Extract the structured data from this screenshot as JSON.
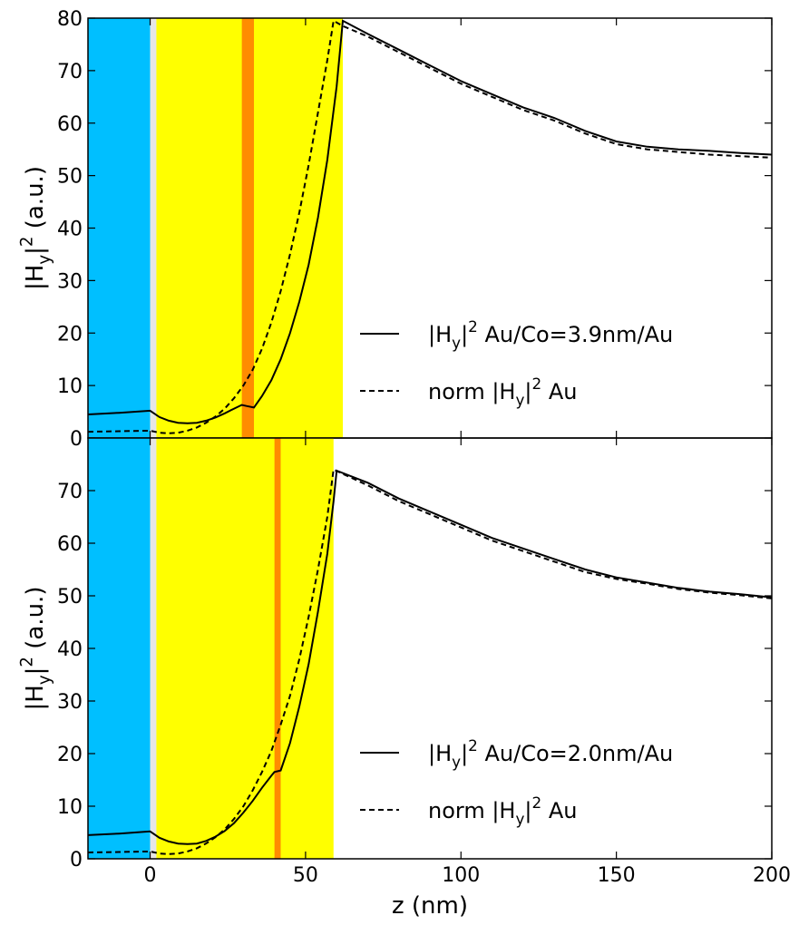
{
  "colors": {
    "substrate": "#00bfff",
    "spacer": "#e6e6e6",
    "gold": "#ffff00",
    "cobalt": "#ff8c00",
    "line": "#000000"
  },
  "xlabel": "z (nm)",
  "chart_data": [
    {
      "type": "line",
      "ylabel": "|H_y|^2 (a.u.)",
      "xlim": [
        -20,
        200
      ],
      "ylim": [
        0,
        80
      ],
      "xticks": [
        0,
        50,
        100,
        150,
        200
      ],
      "yticks": [
        0,
        10,
        20,
        30,
        40,
        50,
        60,
        70,
        80
      ],
      "ytick_labels": [
        "0",
        "10",
        "20",
        "30",
        "40",
        "50",
        "60",
        "70",
        "80"
      ],
      "grid": false,
      "legend_position": "lower-right",
      "regions": [
        {
          "material": "substrate",
          "x0": -20,
          "x1": 0
        },
        {
          "material": "spacer",
          "x0": 0,
          "x1": 2
        },
        {
          "material": "gold",
          "x0": 2,
          "x1": 62
        },
        {
          "material": "cobalt",
          "x0": 29.5,
          "x1": 33.4
        }
      ],
      "series": [
        {
          "name": "Au/Co=3.9nm/Au",
          "style": "solid",
          "x": [
            -20,
            -10,
            0,
            3,
            6,
            9,
            12,
            15,
            18,
            21,
            24,
            27,
            29.5,
            31,
            33.4,
            36,
            39,
            42,
            45,
            48,
            51,
            54,
            57,
            60,
            62,
            70,
            80,
            90,
            100,
            110,
            120,
            130,
            140,
            150,
            160,
            170,
            180,
            190,
            200
          ],
          "y": [
            4.5,
            4.8,
            5.2,
            4.0,
            3.3,
            2.9,
            2.8,
            2.9,
            3.3,
            3.9,
            4.7,
            5.6,
            6.3,
            6.1,
            5.8,
            8.0,
            11.0,
            15.0,
            20.0,
            26.0,
            33.0,
            42.0,
            53.0,
            67.0,
            79.5,
            77.0,
            74.0,
            71.0,
            68.0,
            65.5,
            63.0,
            61.0,
            58.5,
            56.5,
            55.5,
            55.0,
            54.7,
            54.3,
            54.0
          ]
        },
        {
          "name": "Au",
          "style": "dashed",
          "x": [
            -20,
            -10,
            0,
            3,
            6,
            9,
            12,
            15,
            18,
            21,
            24,
            27,
            30,
            33,
            36,
            39,
            42,
            45,
            48,
            51,
            54,
            57,
            59,
            62,
            70,
            80,
            90,
            100,
            110,
            120,
            130,
            140,
            150,
            160,
            170,
            180,
            190,
            200
          ],
          "y": [
            1.2,
            1.3,
            1.4,
            1.0,
            0.9,
            1.0,
            1.4,
            2.0,
            2.9,
            4.1,
            5.6,
            7.6,
            10.0,
            13.0,
            17.0,
            22.0,
            28.0,
            35.0,
            43.0,
            52.0,
            62.0,
            72.0,
            79.5,
            78.5,
            76.5,
            73.5,
            70.5,
            67.5,
            65.0,
            62.5,
            60.5,
            58.0,
            56.0,
            55.0,
            54.5,
            54.0,
            53.7,
            53.4
          ]
        }
      ]
    },
    {
      "type": "line",
      "ylabel": "|H_y|^2 (a.u.)",
      "xlim": [
        -20,
        200
      ],
      "ylim": [
        0,
        80
      ],
      "xticks": [
        0,
        50,
        100,
        150,
        200
      ],
      "xtick_labels": [
        "0",
        "50",
        "100",
        "150",
        "200"
      ],
      "yticks": [
        0,
        10,
        20,
        30,
        40,
        50,
        60,
        70
      ],
      "ytick_labels": [
        "0",
        "10",
        "20",
        "30",
        "40",
        "50",
        "60",
        "70"
      ],
      "grid": false,
      "legend_position": "lower-right",
      "regions": [
        {
          "material": "substrate",
          "x0": -20,
          "x1": 0
        },
        {
          "material": "spacer",
          "x0": 0,
          "x1": 2
        },
        {
          "material": "gold",
          "x0": 2,
          "x1": 59
        },
        {
          "material": "cobalt",
          "x0": 40,
          "x1": 42
        }
      ],
      "series": [
        {
          "name": "Au/Co=2.0nm/Au",
          "style": "solid",
          "x": [
            -20,
            -10,
            0,
            3,
            6,
            9,
            12,
            15,
            18,
            21,
            24,
            27,
            30,
            33,
            36,
            39,
            40,
            42,
            45,
            48,
            51,
            54,
            57,
            59,
            60,
            70,
            80,
            90,
            100,
            110,
            120,
            130,
            140,
            150,
            160,
            170,
            180,
            190,
            200
          ],
          "y": [
            4.5,
            4.8,
            5.2,
            4.0,
            3.3,
            2.9,
            2.8,
            2.9,
            3.4,
            4.2,
            5.3,
            6.8,
            8.8,
            11.0,
            13.5,
            15.8,
            16.5,
            16.8,
            22.0,
            29.0,
            37.0,
            47.0,
            58.0,
            68.0,
            73.8,
            71.5,
            68.5,
            66.0,
            63.5,
            61.0,
            59.0,
            57.0,
            55.0,
            53.5,
            52.5,
            51.5,
            50.8,
            50.3,
            49.7
          ]
        },
        {
          "name": "Au",
          "style": "dashed",
          "x": [
            -20,
            -10,
            0,
            3,
            6,
            9,
            12,
            15,
            18,
            21,
            24,
            27,
            30,
            33,
            36,
            39,
            42,
            45,
            48,
            51,
            54,
            57,
            59,
            70,
            80,
            90,
            100,
            110,
            120,
            130,
            140,
            150,
            160,
            170,
            180,
            190,
            200
          ],
          "y": [
            1.2,
            1.3,
            1.4,
            1.0,
            0.9,
            1.0,
            1.4,
            2.0,
            2.9,
            4.1,
            5.6,
            7.6,
            10.0,
            13.0,
            16.5,
            20.5,
            25.5,
            31.0,
            38.0,
            46.0,
            55.0,
            65.0,
            74.0,
            71.0,
            68.0,
            65.5,
            63.0,
            60.5,
            58.5,
            56.5,
            54.5,
            53.2,
            52.3,
            51.3,
            50.6,
            50.1,
            49.5
          ]
        }
      ]
    }
  ],
  "legends": [
    [
      {
        "prefix": "|H",
        "sub": "y",
        "bar": "|",
        "sup": "2",
        "suffix": " Au/Co=3.9nm/Au"
      },
      {
        "prefix": "norm |H",
        "sub": "y",
        "bar": "|",
        "sup": "2",
        "suffix": " Au"
      }
    ],
    [
      {
        "prefix": "|H",
        "sub": "y",
        "bar": "|",
        "sup": "2",
        "suffix": " Au/Co=2.0nm/Au"
      },
      {
        "prefix": "norm |H",
        "sub": "y",
        "bar": "|",
        "sup": "2",
        "suffix": " Au"
      }
    ]
  ],
  "ylabel_parts": {
    "prefix": "|H",
    "sub": "y",
    "bar": "|",
    "sup": "2",
    "suffix": " (a.u.)"
  }
}
